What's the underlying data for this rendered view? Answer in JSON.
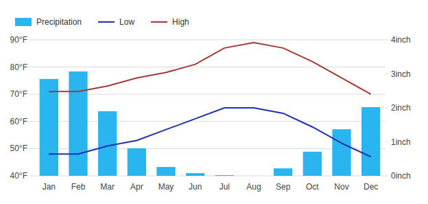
{
  "chart_data": {
    "type": "bar",
    "categories": [
      "Jan",
      "Feb",
      "Mar",
      "Apr",
      "May",
      "Jun",
      "Jul",
      "Aug",
      "Sep",
      "Oct",
      "Nov",
      "Dec"
    ],
    "series": [
      {
        "name": "Precipitation",
        "type": "bar",
        "axis": "y2",
        "color": "#29b6f0",
        "values": [
          2.85,
          3.07,
          1.9,
          0.81,
          0.26,
          0.08,
          0.02,
          0,
          0.22,
          0.71,
          1.37,
          2.02
        ]
      },
      {
        "name": "Low",
        "type": "line",
        "color": "#1f2fb0",
        "values": [
          48,
          48,
          51,
          53,
          57,
          61,
          65,
          65,
          63,
          58,
          52,
          47
        ]
      },
      {
        "name": "High",
        "type": "line",
        "color": "#a33a35",
        "values": [
          71,
          71,
          73,
          76,
          78,
          81,
          87,
          89,
          87,
          82,
          76,
          70
        ]
      }
    ],
    "ylim": [
      40,
      90
    ],
    "yticks": [
      {
        "value": 40,
        "label": "40°F"
      },
      {
        "value": 50,
        "label": "50°F"
      },
      {
        "value": 60,
        "label": "60°F"
      },
      {
        "value": 70,
        "label": "70°F"
      },
      {
        "value": 80,
        "label": "80°F"
      },
      {
        "value": 90,
        "label": "90°F"
      }
    ],
    "y2lim": [
      0,
      4
    ],
    "y2ticks": [
      {
        "value": 0,
        "label": "0inch"
      },
      {
        "value": 1,
        "label": "1inch"
      },
      {
        "value": 2,
        "label": "2inch"
      },
      {
        "value": 3,
        "label": "3inch"
      },
      {
        "value": 4,
        "label": "4inch"
      }
    ],
    "grid": true,
    "legend": "top-left"
  }
}
